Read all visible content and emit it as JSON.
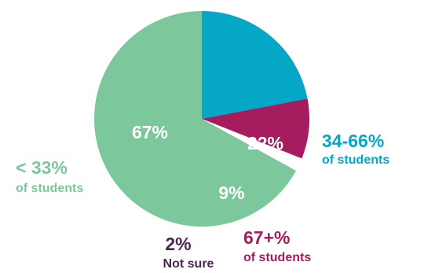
{
  "chart_data": {
    "type": "pie",
    "title": "",
    "slices": [
      {
        "key": "lt33",
        "value": 67,
        "percent_label": "67%",
        "category_label": "< 33%",
        "category_sublabel": "of students",
        "color": "#7cc79b"
      },
      {
        "key": "mid",
        "value": 22,
        "percent_label": "22%",
        "category_label": "34-66%",
        "category_sublabel": "of students",
        "color": "#05a7c7"
      },
      {
        "key": "gt67",
        "value": 9,
        "percent_label": "9%",
        "category_label": "67+%",
        "category_sublabel": "of students",
        "color": "#a51d5e"
      },
      {
        "key": "notsure",
        "value": 2,
        "percent_label": "2%",
        "category_label": "Not sure",
        "color": "#ffffff"
      }
    ],
    "notsure_text_color": "#4f2356"
  }
}
